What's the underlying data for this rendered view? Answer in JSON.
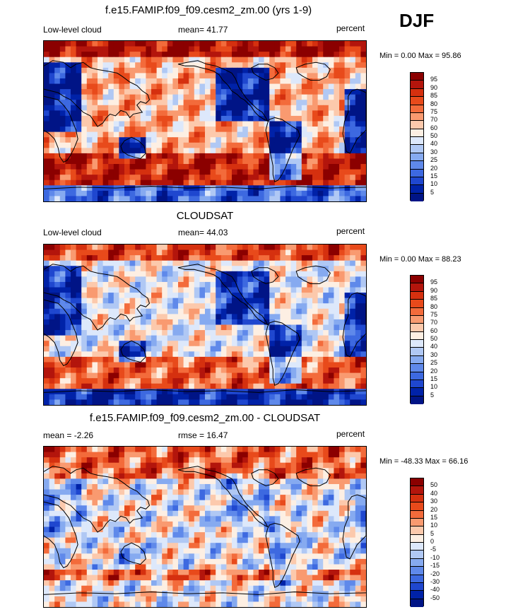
{
  "season": "DJF",
  "panels": [
    {
      "title": "f.e15.FAMIP.f09_f09.cesm2_zm.00 (yrs 1-9)",
      "left_label": "Low-level cloud",
      "mean_label": "mean=  41.77",
      "units": "percent",
      "minmax": "Min =   0.00 Max =  95.86",
      "field": "model",
      "levels": [
        "95",
        "90",
        "85",
        "80",
        "75",
        "70",
        "60",
        "50",
        "40",
        "30",
        "25",
        "20",
        "15",
        "10",
        "5"
      ],
      "colors": [
        "#8b0000",
        "#b3150c",
        "#d5300f",
        "#e84a1b",
        "#f36b3b",
        "#f99a70",
        "#fcc9ac",
        "#fdefe3",
        "#dde8fb",
        "#b0c8f4",
        "#86aaf0",
        "#5f89ea",
        "#3d69e0",
        "#1f47cf",
        "#0022a8",
        "#001486"
      ]
    },
    {
      "title": "CLOUDSAT",
      "left_label": "Low-level cloud",
      "mean_label": "mean=  44.03",
      "units": "percent",
      "minmax": "Min =   0.00 Max =  88.23",
      "field": "obs",
      "levels": [
        "95",
        "90",
        "85",
        "80",
        "75",
        "70",
        "60",
        "50",
        "40",
        "30",
        "25",
        "20",
        "15",
        "10",
        "5"
      ],
      "colors": [
        "#8b0000",
        "#b3150c",
        "#d5300f",
        "#e84a1b",
        "#f36b3b",
        "#f99a70",
        "#fcc9ac",
        "#fdefe3",
        "#dde8fb",
        "#b0c8f4",
        "#86aaf0",
        "#5f89ea",
        "#3d69e0",
        "#1f47cf",
        "#0022a8",
        "#001486"
      ]
    },
    {
      "title": "f.e15.FAMIP.f09_f09.cesm2_zm.00 - CLOUDSAT",
      "left_label": "mean =  -2.26",
      "mean_label": "rmse =  16.47",
      "units": "percent",
      "minmax": "Min = -48.33 Max =  66.16",
      "field": "diff",
      "levels": [
        "50",
        "40",
        "30",
        "20",
        "15",
        "10",
        "5",
        "0",
        "-5",
        "-10",
        "-15",
        "-20",
        "-30",
        "-40",
        "-50"
      ],
      "colors": [
        "#8b0000",
        "#b3150c",
        "#d5300f",
        "#e84a1b",
        "#f36b3b",
        "#f99a70",
        "#fcc9ac",
        "#fdefe3",
        "#dde8fb",
        "#b0c8f4",
        "#86aaf0",
        "#5f89ea",
        "#3d69e0",
        "#1f47cf",
        "#0022a8",
        "#001486"
      ]
    }
  ]
}
